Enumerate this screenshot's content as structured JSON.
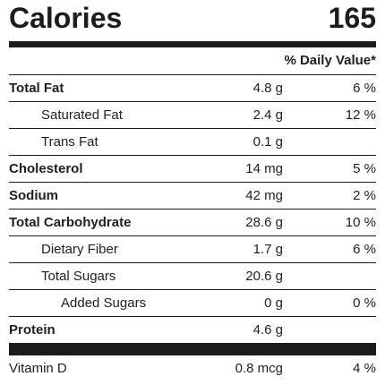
{
  "calories": {
    "label": "Calories",
    "value": "165"
  },
  "daily_value_header": "% Daily Value*",
  "rows": [
    {
      "name": "Total Fat",
      "amount": "4.8 g",
      "dv": "6 %"
    },
    {
      "name": "Saturated Fat",
      "amount": "2.4 g",
      "dv": "12 %"
    },
    {
      "name": "Trans Fat",
      "amount": "0.1 g",
      "dv": ""
    },
    {
      "name": "Cholesterol",
      "amount": "14 mg",
      "dv": "5 %"
    },
    {
      "name": "Sodium",
      "amount": "42 mg",
      "dv": "2 %"
    },
    {
      "name": "Total Carbohydrate",
      "amount": "28.6 g",
      "dv": "10 %"
    },
    {
      "name": "Dietary Fiber",
      "amount": "1.7 g",
      "dv": "6 %"
    },
    {
      "name": "Total Sugars",
      "amount": "20.6 g",
      "dv": ""
    },
    {
      "name": "Added Sugars",
      "amount": "0 g",
      "dv": "0 %"
    },
    {
      "name": "Protein",
      "amount": "4.6 g",
      "dv": ""
    }
  ],
  "vitamins": [
    {
      "name": "Vitamin D",
      "amount": "0.8 mcg",
      "dv": "4 %"
    }
  ]
}
